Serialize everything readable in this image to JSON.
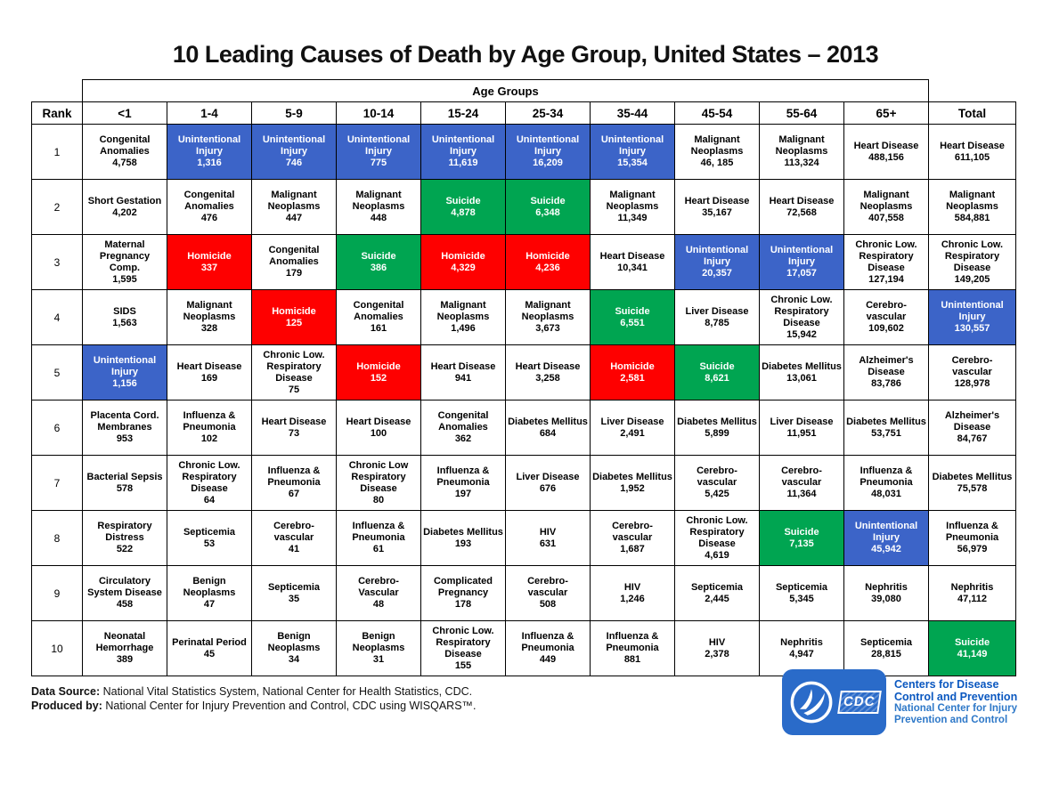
{
  "title": "10 Leading Causes of Death by Age Group, United States – 2013",
  "colors": {
    "blue": "#3C64C8",
    "red": "#FE0000",
    "green": "#00A551",
    "badge_blue": "#2A6BC9",
    "org_blue": "#0B58C0",
    "sub_blue": "#2E78C8"
  },
  "footer": {
    "source_label": "Data Source:",
    "source_text": "National Vital Statistics System, National Center for Health Statistics, CDC.",
    "produced_label": "Produced by:",
    "produced_text": "National Center for Injury Prevention and Control, CDC using WISQARS™."
  },
  "logo": {
    "cdc_text": "CDC",
    "org_line1": "Centers for Disease",
    "org_line2": "Control and Prevention",
    "sub_line1": "National Center for Injury",
    "sub_line2": "Prevention and Control"
  },
  "chart_data": {
    "type": "table",
    "title": "10 Leading Causes of Death by Age Group, United States – 2013",
    "group_header": "Age Groups",
    "rank_header": "Rank",
    "columns": [
      "<1",
      "1-4",
      "5-9",
      "10-14",
      "15-24",
      "25-34",
      "35-44",
      "45-54",
      "55-64",
      "65+",
      "Total"
    ],
    "color_meaning": {
      "blue": "Unintentional Injury",
      "red": "Homicide",
      "green": "Suicide",
      "white": "other causes"
    },
    "rows": [
      {
        "rank": "1",
        "cells": [
          {
            "cause": "Congenital Anomalies",
            "value": "4,758",
            "color": "white"
          },
          {
            "cause": "Unintentional Injury",
            "value": "1,316",
            "color": "blue"
          },
          {
            "cause": "Unintentional Injury",
            "value": "746",
            "color": "blue"
          },
          {
            "cause": "Unintentional Injury",
            "value": "775",
            "color": "blue"
          },
          {
            "cause": "Unintentional Injury",
            "value": "11,619",
            "color": "blue"
          },
          {
            "cause": "Unintentional Injury",
            "value": "16,209",
            "color": "blue"
          },
          {
            "cause": "Unintentional Injury",
            "value": "15,354",
            "color": "blue"
          },
          {
            "cause": "Malignant Neoplasms",
            "value": "46, 185",
            "color": "white"
          },
          {
            "cause": "Malignant Neoplasms",
            "value": "113,324",
            "color": "white"
          },
          {
            "cause": "Heart Disease",
            "value": "488,156",
            "color": "white"
          },
          {
            "cause": "Heart Disease",
            "value": "611,105",
            "color": "white"
          }
        ]
      },
      {
        "rank": "2",
        "cells": [
          {
            "cause": "Short Gestation",
            "value": "4,202",
            "color": "white"
          },
          {
            "cause": "Congenital Anomalies",
            "value": "476",
            "color": "white"
          },
          {
            "cause": "Malignant Neoplasms",
            "value": "447",
            "color": "white"
          },
          {
            "cause": "Malignant Neoplasms",
            "value": "448",
            "color": "white"
          },
          {
            "cause": "Suicide",
            "value": "4,878",
            "color": "green"
          },
          {
            "cause": "Suicide",
            "value": "6,348",
            "color": "green"
          },
          {
            "cause": "Malignant Neoplasms",
            "value": "11,349",
            "color": "white"
          },
          {
            "cause": "Heart Disease",
            "value": "35,167",
            "color": "white"
          },
          {
            "cause": "Heart Disease",
            "value": "72,568",
            "color": "white"
          },
          {
            "cause": "Malignant Neoplasms",
            "value": "407,558",
            "color": "white"
          },
          {
            "cause": "Malignant Neoplasms",
            "value": "584,881",
            "color": "white"
          }
        ]
      },
      {
        "rank": "3",
        "cells": [
          {
            "cause": "Maternal Pregnancy Comp.",
            "value": "1,595",
            "color": "white"
          },
          {
            "cause": "Homicide",
            "value": "337",
            "color": "red"
          },
          {
            "cause": "Congenital Anomalies",
            "value": "179",
            "color": "white"
          },
          {
            "cause": "Suicide",
            "value": "386",
            "color": "green"
          },
          {
            "cause": "Homicide",
            "value": "4,329",
            "color": "red"
          },
          {
            "cause": "Homicide",
            "value": "4,236",
            "color": "red"
          },
          {
            "cause": "Heart Disease",
            "value": "10,341",
            "color": "white"
          },
          {
            "cause": "Unintentional Injury",
            "value": "20,357",
            "color": "blue"
          },
          {
            "cause": "Unintentional Injury",
            "value": "17,057",
            "color": "blue"
          },
          {
            "cause": "Chronic Low. Respiratory Disease",
            "value": "127,194",
            "color": "white"
          },
          {
            "cause": "Chronic Low. Respiratory Disease",
            "value": "149,205",
            "color": "white"
          }
        ]
      },
      {
        "rank": "4",
        "cells": [
          {
            "cause": "SIDS",
            "value": "1,563",
            "color": "white"
          },
          {
            "cause": "Malignant Neoplasms",
            "value": "328",
            "color": "white"
          },
          {
            "cause": "Homicide",
            "value": "125",
            "color": "red"
          },
          {
            "cause": "Congenital Anomalies",
            "value": "161",
            "color": "white"
          },
          {
            "cause": "Malignant Neoplasms",
            "value": "1,496",
            "color": "white"
          },
          {
            "cause": "Malignant Neoplasms",
            "value": "3,673",
            "color": "white"
          },
          {
            "cause": "Suicide",
            "value": "6,551",
            "color": "green"
          },
          {
            "cause": "Liver Disease",
            "value": "8,785",
            "color": "white"
          },
          {
            "cause": "Chronic Low. Respiratory Disease",
            "value": "15,942",
            "color": "white"
          },
          {
            "cause": "Cerebro- vascular",
            "value": "109,602",
            "color": "white"
          },
          {
            "cause": "Unintentional Injury",
            "value": "130,557",
            "color": "blue"
          }
        ]
      },
      {
        "rank": "5",
        "cells": [
          {
            "cause": "Unintentional Injury",
            "value": "1,156",
            "color": "blue"
          },
          {
            "cause": "Heart Disease",
            "value": "169",
            "color": "white"
          },
          {
            "cause": "Chronic Low. Respiratory Disease",
            "value": "75",
            "color": "white"
          },
          {
            "cause": "Homicide",
            "value": "152",
            "color": "red"
          },
          {
            "cause": "Heart Disease",
            "value": "941",
            "color": "white"
          },
          {
            "cause": "Heart Disease",
            "value": "3,258",
            "color": "white"
          },
          {
            "cause": "Homicide",
            "value": "2,581",
            "color": "red"
          },
          {
            "cause": "Suicide",
            "value": "8,621",
            "color": "green"
          },
          {
            "cause": "Diabetes Mellitus",
            "value": "13,061",
            "color": "white"
          },
          {
            "cause": "Alzheimer's Disease",
            "value": "83,786",
            "color": "white"
          },
          {
            "cause": "Cerebro- vascular",
            "value": "128,978",
            "color": "white"
          }
        ]
      },
      {
        "rank": "6",
        "cells": [
          {
            "cause": "Placenta Cord. Membranes",
            "value": "953",
            "color": "white"
          },
          {
            "cause": "Influenza & Pneumonia",
            "value": "102",
            "color": "white"
          },
          {
            "cause": "Heart Disease",
            "value": "73",
            "color": "white"
          },
          {
            "cause": "Heart Disease",
            "value": "100",
            "color": "white"
          },
          {
            "cause": "Congenital Anomalies",
            "value": "362",
            "color": "white"
          },
          {
            "cause": "Diabetes Mellitus",
            "value": "684",
            "color": "white"
          },
          {
            "cause": "Liver Disease",
            "value": "2,491",
            "color": "white"
          },
          {
            "cause": "Diabetes Mellitus",
            "value": "5,899",
            "color": "white"
          },
          {
            "cause": "Liver Disease",
            "value": "11,951",
            "color": "white"
          },
          {
            "cause": "Diabetes Mellitus",
            "value": "53,751",
            "color": "white"
          },
          {
            "cause": "Alzheimer's Disease",
            "value": "84,767",
            "color": "white"
          }
        ]
      },
      {
        "rank": "7",
        "cells": [
          {
            "cause": "Bacterial Sepsis",
            "value": "578",
            "color": "white"
          },
          {
            "cause": "Chronic Low. Respiratory Disease",
            "value": "64",
            "color": "white"
          },
          {
            "cause": "Influenza & Pneumonia",
            "value": "67",
            "color": "white"
          },
          {
            "cause": "Chronic Low Respiratory Disease",
            "value": "80",
            "color": "white"
          },
          {
            "cause": "Influenza & Pneumonia",
            "value": "197",
            "color": "white"
          },
          {
            "cause": "Liver Disease",
            "value": "676",
            "color": "white"
          },
          {
            "cause": "Diabetes Mellitus",
            "value": "1,952",
            "color": "white"
          },
          {
            "cause": "Cerebro- vascular",
            "value": "5,425",
            "color": "white"
          },
          {
            "cause": "Cerebro- vascular",
            "value": "11,364",
            "color": "white"
          },
          {
            "cause": "Influenza & Pneumonia",
            "value": "48,031",
            "color": "white"
          },
          {
            "cause": "Diabetes Mellitus",
            "value": "75,578",
            "color": "white"
          }
        ]
      },
      {
        "rank": "8",
        "cells": [
          {
            "cause": "Respiratory Distress",
            "value": "522",
            "color": "white"
          },
          {
            "cause": "Septicemia",
            "value": "53",
            "color": "white"
          },
          {
            "cause": "Cerebro- vascular",
            "value": "41",
            "color": "white"
          },
          {
            "cause": "Influenza & Pneumonia",
            "value": "61",
            "color": "white"
          },
          {
            "cause": "Diabetes Mellitus",
            "value": "193",
            "color": "white"
          },
          {
            "cause": "HIV",
            "value": "631",
            "color": "white"
          },
          {
            "cause": "Cerebro- vascular",
            "value": "1,687",
            "color": "white"
          },
          {
            "cause": "Chronic Low. Respiratory Disease",
            "value": "4,619",
            "color": "white"
          },
          {
            "cause": "Suicide",
            "value": "7,135",
            "color": "green"
          },
          {
            "cause": "Unintentional Injury",
            "value": "45,942",
            "color": "blue"
          },
          {
            "cause": "Influenza & Pneumonia",
            "value": "56,979",
            "color": "white"
          }
        ]
      },
      {
        "rank": "9",
        "cells": [
          {
            "cause": "Circulatory System Disease",
            "value": "458",
            "color": "white"
          },
          {
            "cause": "Benign Neoplasms",
            "value": "47",
            "color": "white"
          },
          {
            "cause": "Septicemia",
            "value": "35",
            "color": "white"
          },
          {
            "cause": "Cerebro- Vascular",
            "value": "48",
            "color": "white"
          },
          {
            "cause": "Complicated Pregnancy",
            "value": "178",
            "color": "white"
          },
          {
            "cause": "Cerebro- vascular",
            "value": "508",
            "color": "white"
          },
          {
            "cause": "HIV",
            "value": "1,246",
            "color": "white"
          },
          {
            "cause": "Septicemia",
            "value": "2,445",
            "color": "white"
          },
          {
            "cause": "Septicemia",
            "value": "5,345",
            "color": "white"
          },
          {
            "cause": "Nephritis",
            "value": "39,080",
            "color": "white"
          },
          {
            "cause": "Nephritis",
            "value": "47,112",
            "color": "white"
          }
        ]
      },
      {
        "rank": "10",
        "cells": [
          {
            "cause": "Neonatal Hemorrhage",
            "value": "389",
            "color": "white"
          },
          {
            "cause": "Perinatal Period",
            "value": "45",
            "color": "white"
          },
          {
            "cause": "Benign Neoplasms",
            "value": "34",
            "color": "white"
          },
          {
            "cause": "Benign Neoplasms",
            "value": "31",
            "color": "white"
          },
          {
            "cause": "Chronic Low. Respiratory Disease",
            "value": "155",
            "color": "white"
          },
          {
            "cause": "Influenza & Pneumonia",
            "value": "449",
            "color": "white"
          },
          {
            "cause": "Influenza & Pneumonia",
            "value": "881",
            "color": "white"
          },
          {
            "cause": "HIV",
            "value": "2,378",
            "color": "white"
          },
          {
            "cause": "Nephritis",
            "value": "4,947",
            "color": "white"
          },
          {
            "cause": "Septicemia",
            "value": "28,815",
            "color": "white"
          },
          {
            "cause": "Suicide",
            "value": "41,149",
            "color": "green"
          }
        ]
      }
    ]
  }
}
